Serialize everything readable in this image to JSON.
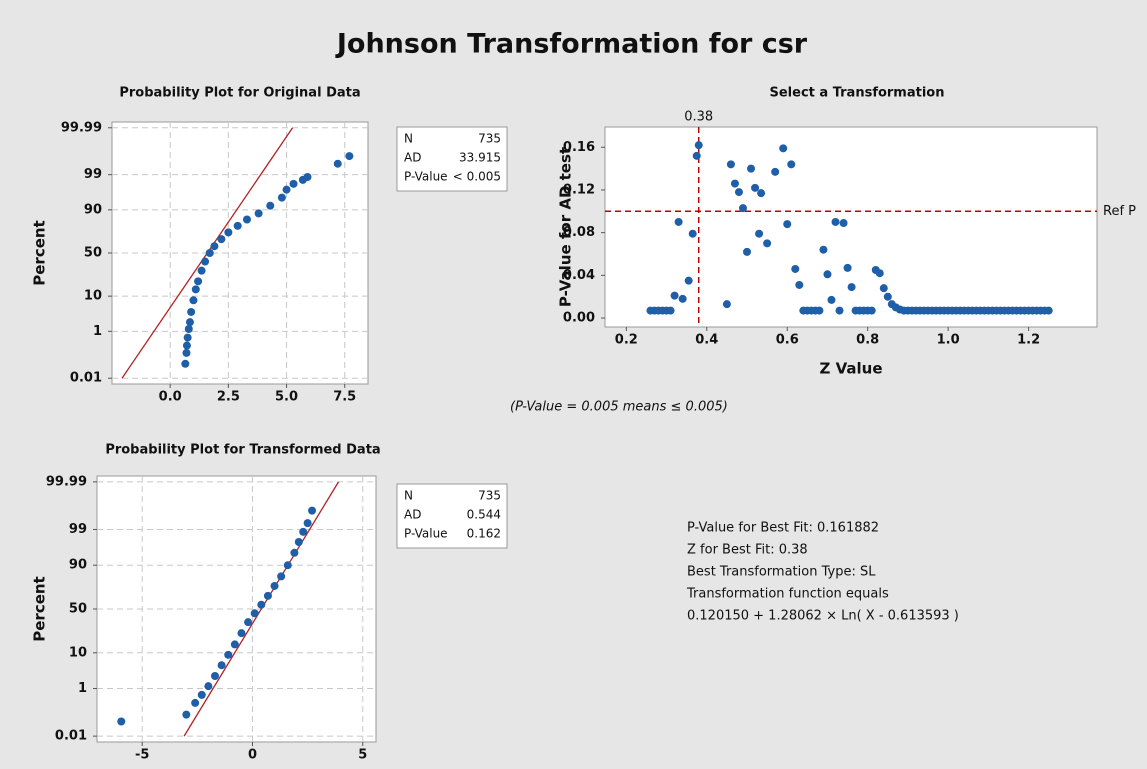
{
  "title": "Johnson Transformation for csr",
  "chart_data": [
    {
      "type": "probability",
      "title": "Probability Plot for Original Data",
      "y_label": "Percent",
      "y_scale": "normal-probability",
      "grid": true,
      "xlim": [
        -2.5,
        8.5
      ],
      "xticks": [
        {
          "value": 0,
          "label": "0.0"
        },
        2.5,
        {
          "value": 5,
          "label": "5.0"
        },
        7.5
      ],
      "ylim": [
        0.005,
        99.995
      ],
      "yticks": [
        99.99,
        99,
        90,
        50,
        10,
        1,
        0.01
      ],
      "points": {
        "color": "#1f5ea8",
        "x": [
          0.65,
          0.7,
          0.72,
          0.75,
          0.8,
          0.85,
          0.9,
          1.0,
          1.1,
          1.2,
          1.35,
          1.5,
          1.7,
          1.9,
          2.2,
          2.5,
          2.9,
          3.3,
          3.8,
          4.3,
          4.8,
          5.0,
          5.3,
          5.7,
          5.9,
          7.2,
          7.7
        ],
        "values": [
          0.05,
          0.15,
          0.3,
          0.6,
          1.2,
          2,
          4,
          8,
          14,
          20,
          30,
          40,
          50,
          58,
          66,
          73,
          79,
          84,
          88,
          92,
          95,
          97,
          98,
          98.5,
          98.8,
          99.6,
          99.8
        ]
      },
      "fit_line": {
        "color": "#b22222",
        "x": [
          -2.07,
          5.26
        ],
        "values": [
          0.01,
          99.99
        ]
      }
    },
    {
      "type": "probability",
      "title": "Probability Plot for Transformed Data",
      "y_label": "Percent",
      "y_scale": "normal-probability",
      "grid": true,
      "xlim": [
        -7.05,
        5.6
      ],
      "xticks": [
        -5,
        0,
        5
      ],
      "ylim": [
        0.005,
        99.995
      ],
      "yticks": [
        99.99,
        99,
        90,
        50,
        10,
        1,
        0.01
      ],
      "points": {
        "color": "#1f5ea8",
        "x": [
          -5.95,
          -3.0,
          -2.6,
          -2.3,
          -2.0,
          -1.7,
          -1.4,
          -1.1,
          -0.8,
          -0.5,
          -0.2,
          0.1,
          0.4,
          0.7,
          1.0,
          1.3,
          1.6,
          1.9,
          2.1,
          2.3,
          2.5,
          2.7
        ],
        "values": [
          0.05,
          0.1,
          0.3,
          0.6,
          1.2,
          2.5,
          5,
          9,
          15,
          24,
          35,
          45,
          55,
          65,
          75,
          83,
          90,
          95,
          97.5,
          98.8,
          99.4,
          99.8
        ]
      },
      "fit_line": {
        "color": "#b22222",
        "x": [
          -3.1,
          3.9
        ],
        "values": [
          0.01,
          99.99
        ]
      }
    },
    {
      "type": "scatter",
      "title": "Select a Transformation",
      "x_label": "Z Value",
      "y_label": "P-Value for AD test",
      "grid": false,
      "xlim": [
        0.147,
        1.37
      ],
      "xticks": [
        0.2,
        0.4,
        0.6,
        0.8,
        {
          "value": 1,
          "label": "1.0"
        },
        1.2
      ],
      "ylim": [
        -0.0084,
        0.179
      ],
      "yticks": [
        {
          "value": 0,
          "label": "0.00"
        },
        0.04,
        0.08,
        0.12,
        0.16
      ],
      "points": {
        "color": "#1f5ea8",
        "x": [
          0.26,
          0.27,
          0.28,
          0.29,
          0.3,
          0.31,
          0.32,
          0.33,
          0.34,
          0.355,
          0.365,
          0.375,
          0.38,
          0.45,
          0.46,
          0.47,
          0.48,
          0.49,
          0.5,
          0.51,
          0.52,
          0.53,
          0.535,
          0.55,
          0.57,
          0.59,
          0.6,
          0.61,
          0.62,
          0.63,
          0.64,
          0.65,
          0.66,
          0.67,
          0.68,
          0.69,
          0.7,
          0.71,
          0.72,
          0.73,
          0.74,
          0.75,
          0.76,
          0.77,
          0.78,
          0.79,
          0.8,
          0.81,
          0.82,
          0.83,
          0.84,
          0.85,
          0.86,
          0.87,
          0.88,
          0.89,
          0.9,
          0.91,
          0.92,
          0.93,
          0.94,
          0.95,
          0.96,
          0.97,
          0.98,
          0.99,
          1.0,
          1.01,
          1.02,
          1.03,
          1.04,
          1.05,
          1.06,
          1.07,
          1.08,
          1.09,
          1.1,
          1.11,
          1.12,
          1.13,
          1.14,
          1.15,
          1.16,
          1.17,
          1.18,
          1.19,
          1.2,
          1.21,
          1.22,
          1.23,
          1.24,
          1.25
        ],
        "values": [
          0.007,
          0.007,
          0.007,
          0.007,
          0.007,
          0.007,
          0.021,
          0.09,
          0.018,
          0.035,
          0.079,
          0.152,
          0.162,
          0.013,
          0.144,
          0.126,
          0.118,
          0.103,
          0.062,
          0.14,
          0.122,
          0.079,
          0.117,
          0.07,
          0.137,
          0.159,
          0.088,
          0.144,
          0.046,
          0.031,
          0.007,
          0.007,
          0.007,
          0.007,
          0.007,
          0.064,
          0.041,
          0.017,
          0.09,
          0.007,
          0.089,
          0.047,
          0.029,
          0.007,
          0.007,
          0.007,
          0.007,
          0.007,
          0.045,
          0.042,
          0.028,
          0.02,
          0.013,
          0.01,
          0.008,
          0.007,
          0.007,
          0.007,
          0.007,
          0.007,
          0.007,
          0.007,
          0.007,
          0.007,
          0.007,
          0.007,
          0.007,
          0.007,
          0.007,
          0.007,
          0.007,
          0.007,
          0.007,
          0.007,
          0.007,
          0.007,
          0.007,
          0.007,
          0.007,
          0.007,
          0.007,
          0.007,
          0.007,
          0.007,
          0.007,
          0.007,
          0.007,
          0.007,
          0.007,
          0.007,
          0.007,
          0.007
        ]
      },
      "ref_lines": [
        {
          "axis": "x",
          "value": 0.38,
          "color": "#c00000"
        },
        {
          "axis": "y",
          "value": 0.1,
          "label": "Ref P",
          "color": "#c00000"
        }
      ]
    }
  ],
  "stats": [
    {
      "rows": [
        [
          "N",
          "735"
        ],
        [
          "AD",
          "33.915"
        ],
        [
          "P-Value",
          "< 0.005"
        ]
      ]
    },
    {
      "rows": [
        [
          "N",
          "735"
        ],
        [
          "AD",
          "0.544"
        ],
        [
          "P-Value",
          "0.162"
        ]
      ]
    }
  ],
  "note": "(P-Value = 0.005 means ≤ 0.005)",
  "best_fit": [
    "P-Value for Best Fit: 0.161882",
    "Z for Best Fit: 0.38",
    "Best Transformation Type: SL",
    "Transformation function equals",
    "0.120150 + 1.28062 × Ln( X - 0.613593 )"
  ]
}
